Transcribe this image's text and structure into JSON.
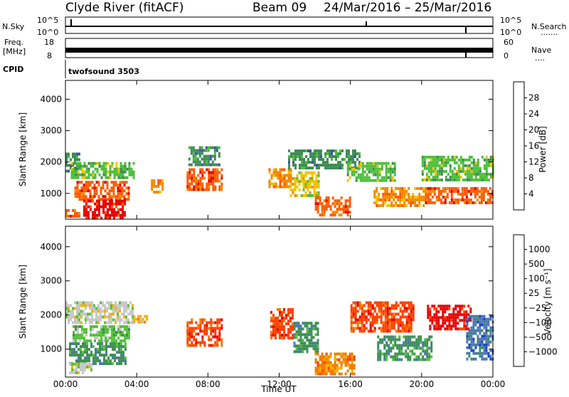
{
  "header": {
    "station": "Clyde River (fitACF)",
    "beam": "Beam 09",
    "dates": "24/Mar/2016 – 25/Mar/2016"
  },
  "panels": {
    "nsky": {
      "label": "N.Sky",
      "left_top": "10^5",
      "left_bottom": "10^0",
      "right_top": "10^5",
      "right_bottom": "10^0",
      "right_label": "N.Search",
      "right_dots": "......."
    },
    "freq": {
      "label1": "Freq.",
      "label2": "[MHz]",
      "left_top": "18",
      "left_bottom": "8",
      "right_top": "60",
      "right_bottom": "0",
      "right_label": "Nave",
      "right_dots": "...."
    },
    "cpid": {
      "label": "CPID",
      "value": "twofsound 3503"
    }
  },
  "chart_data": [
    {
      "type": "heatmap",
      "name": "power",
      "ylabel": "Slant Range [km]",
      "xlabel": "Time UT",
      "x_ticks": [
        "00:00",
        "04:00",
        "08:00",
        "12:00",
        "16:00",
        "20:00",
        "00:00"
      ],
      "x_hours": [
        0,
        4,
        8,
        12,
        16,
        20,
        24
      ],
      "xlim": [
        0,
        24
      ],
      "y_ticks": [
        1000,
        2000,
        3000,
        4000
      ],
      "ylim": [
        180,
        4600
      ],
      "colorbar": {
        "label": "Power [dB]",
        "tick_labels": [
          "4",
          "8",
          "12",
          "16",
          "20",
          "24",
          "28"
        ],
        "colors": [
          "#1f1fff",
          "#3a52b0",
          "#3f8a55",
          "#4bbf3a",
          "#f2c200",
          "#f28a00",
          "#ff5a00",
          "#e60000"
        ]
      },
      "regions": [
        {
          "t0": 0.0,
          "t1": 0.8,
          "r0": 1700,
          "r1": 2300,
          "level": 2
        },
        {
          "t0": 0.3,
          "t1": 3.8,
          "r0": 1500,
          "r1": 2000,
          "level": 3
        },
        {
          "t0": 0.5,
          "t1": 3.6,
          "r0": 800,
          "r1": 1400,
          "level": 6
        },
        {
          "t0": 1.0,
          "t1": 3.3,
          "r0": 250,
          "r1": 800,
          "level": 7
        },
        {
          "t0": 0.0,
          "t1": 0.8,
          "r0": 250,
          "r1": 500,
          "level": 6
        },
        {
          "t0": 4.8,
          "t1": 5.4,
          "r0": 1050,
          "r1": 1450,
          "level": 5
        },
        {
          "t0": 6.8,
          "t1": 8.8,
          "r0": 1100,
          "r1": 1800,
          "level": 6
        },
        {
          "t0": 6.9,
          "t1": 8.6,
          "r0": 1900,
          "r1": 2500,
          "level": 2
        },
        {
          "t0": 11.4,
          "t1": 12.6,
          "r0": 1200,
          "r1": 1800,
          "level": 5
        },
        {
          "t0": 12.6,
          "t1": 14.2,
          "r0": 900,
          "r1": 1700,
          "level": 4
        },
        {
          "t0": 14.0,
          "t1": 16.0,
          "r0": 300,
          "r1": 900,
          "level": 6
        },
        {
          "t0": 12.5,
          "t1": 16.5,
          "r0": 1800,
          "r1": 2400,
          "level": 2
        },
        {
          "t0": 15.8,
          "t1": 18.5,
          "r0": 1400,
          "r1": 2000,
          "level": 3
        },
        {
          "t0": 17.3,
          "t1": 20.2,
          "r0": 600,
          "r1": 1200,
          "level": 5
        },
        {
          "t0": 20.2,
          "t1": 24.0,
          "r0": 700,
          "r1": 1200,
          "level": 6
        },
        {
          "t0": 20.0,
          "t1": 24.0,
          "r0": 1400,
          "r1": 2200,
          "level": 3
        }
      ]
    },
    {
      "type": "heatmap",
      "name": "velocity",
      "ylabel": "Slant Range [km]",
      "xlabel": "Time UT",
      "x_ticks": [
        "00:00",
        "04:00",
        "08:00",
        "12:00",
        "16:00",
        "20:00",
        "00:00"
      ],
      "x_hours": [
        0,
        4,
        8,
        12,
        16,
        20,
        24
      ],
      "xlim": [
        0,
        24
      ],
      "y_ticks": [
        1000,
        2000,
        3000,
        4000
      ],
      "ylim": [
        180,
        4600
      ],
      "colorbar": {
        "label": "Velocity [m s⁻¹]",
        "tick_labels": [
          "1000",
          "500",
          "100",
          "25",
          "−25",
          "−100",
          "−500",
          "−1000"
        ],
        "colors": [
          "#1f3fcc",
          "#4a76b0",
          "#3f8f55",
          "#55c23a",
          "#c8c8c8",
          "#f2b000",
          "#f27a00",
          "#ff4000",
          "#e60000"
        ]
      },
      "regions": [
        {
          "t0": 0.0,
          "t1": 3.8,
          "r0": 1800,
          "r1": 2400,
          "level": 4
        },
        {
          "t0": 0.4,
          "t1": 3.6,
          "r0": 1200,
          "r1": 1700,
          "level": 3
        },
        {
          "t0": 0.2,
          "t1": 3.4,
          "r0": 600,
          "r1": 1200,
          "level": 2
        },
        {
          "t0": 0.2,
          "t1": 1.5,
          "r0": 300,
          "r1": 600,
          "level": 4
        },
        {
          "t0": 3.8,
          "t1": 4.6,
          "r0": 1800,
          "r1": 2000,
          "level": 5
        },
        {
          "t0": 6.8,
          "t1": 8.8,
          "r0": 1100,
          "r1": 1900,
          "level": 7
        },
        {
          "t0": 11.5,
          "t1": 12.8,
          "r0": 1300,
          "r1": 2200,
          "level": 7
        },
        {
          "t0": 12.8,
          "t1": 14.2,
          "r0": 900,
          "r1": 1800,
          "level": 2
        },
        {
          "t0": 14.0,
          "t1": 16.2,
          "r0": 250,
          "r1": 900,
          "level": 6
        },
        {
          "t0": 16.0,
          "t1": 19.5,
          "r0": 1500,
          "r1": 2400,
          "level": 7
        },
        {
          "t0": 17.5,
          "t1": 20.5,
          "r0": 700,
          "r1": 1400,
          "level": 2
        },
        {
          "t0": 20.3,
          "t1": 22.8,
          "r0": 1600,
          "r1": 2300,
          "level": 8
        },
        {
          "t0": 22.5,
          "t1": 24.0,
          "r0": 700,
          "r1": 2000,
          "level": 1
        }
      ]
    }
  ]
}
